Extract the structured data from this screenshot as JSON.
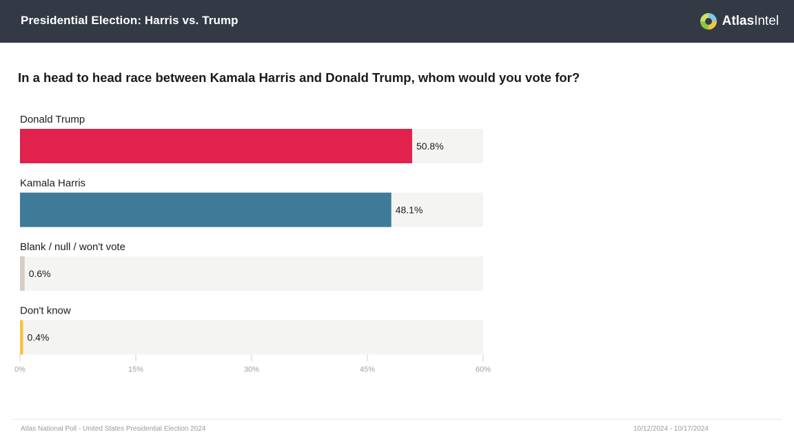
{
  "header": {
    "title": "Presidential Election: Harris vs. Trump",
    "brand_bold": "Atlas",
    "brand_light": "Intel"
  },
  "question": "In a head to head race between Kamala Harris and Donald Trump, whom would you vote for?",
  "chart_data": {
    "type": "bar",
    "orientation": "horizontal",
    "categories": [
      "Donald Trump",
      "Kamala Harris",
      "Blank / null / won't vote",
      "Don't know"
    ],
    "values": [
      50.8,
      48.1,
      0.6,
      0.4
    ],
    "value_labels": [
      "50.8%",
      "48.1%",
      "0.6%",
      "0.4%"
    ],
    "colors": [
      "#e0224d",
      "#3e7b99",
      "#d8cdc6",
      "#f5c242"
    ],
    "track_color": "#f4f4f2",
    "xlim": [
      0,
      60
    ],
    "xticks": [
      0,
      15,
      30,
      45,
      60
    ],
    "xtick_labels": [
      "0%",
      "15%",
      "30%",
      "45%",
      "60%"
    ],
    "grid": false
  },
  "footer": {
    "source": "Atlas National Poll - United States Presidential Election 2024",
    "dates": "10/12/2024 - 10/17/2024"
  }
}
